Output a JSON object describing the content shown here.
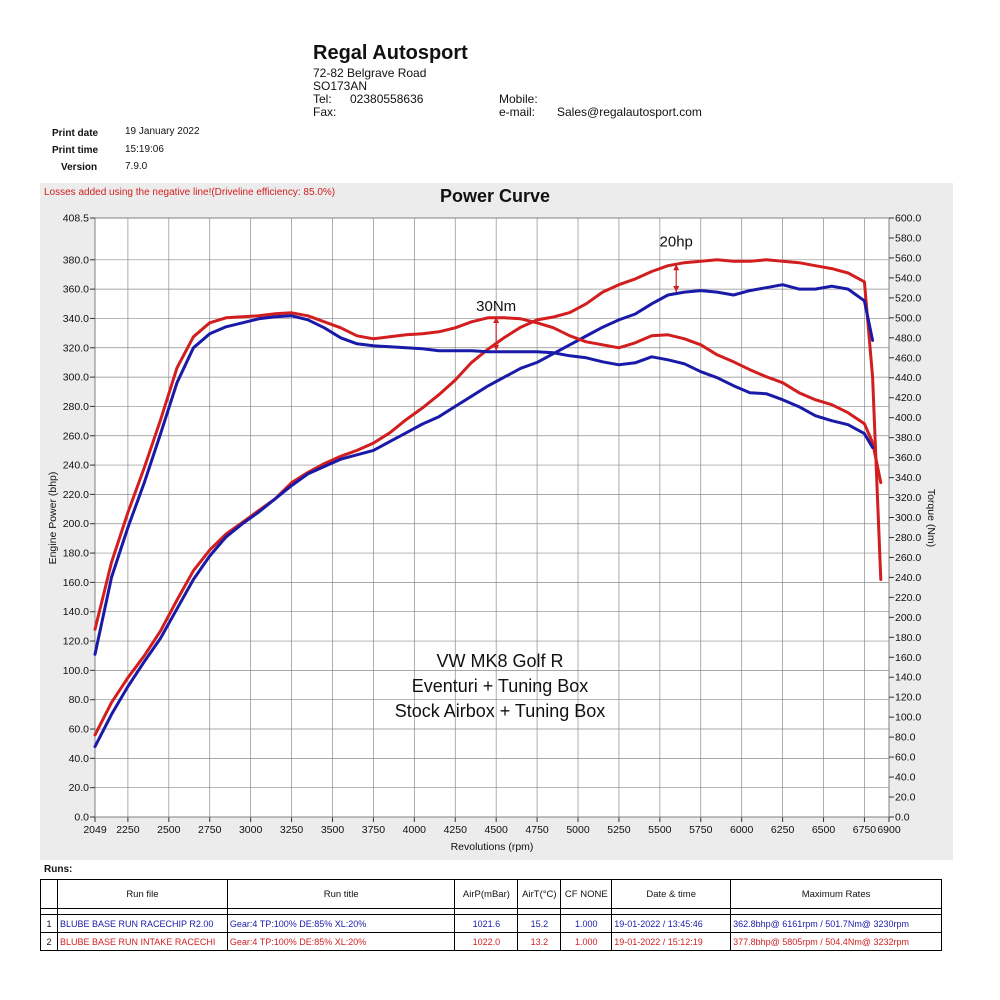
{
  "header": {
    "company": "Regal Autosport",
    "address1": "72-82 Belgrave Road",
    "address2": "SO173AN",
    "tel_label": "Tel:",
    "tel_value": "02380558636",
    "fax_label": "Fax:",
    "mobile_label": "Mobile:",
    "email_label": "e-mail:",
    "email_value": "Sales@regalautosport.com"
  },
  "meta": {
    "print_date_label": "Print date",
    "print_date_value": "19 January 2022",
    "print_time_label": "Print time",
    "print_time_value": "15:19:06",
    "version_label": "Version",
    "version_value": "7.9.0"
  },
  "colors": {
    "red": "#d21e1e",
    "blue": "#1a1aa8",
    "panel": "#ececec",
    "grid": "#8c8c8c"
  },
  "chart_data": {
    "type": "line",
    "title": "Power Curve",
    "note": "Losses added using the negative line!(Driveline efficiency: 85.0%)",
    "xlabel": "Revolutions (rpm)",
    "ylabel": "Engine Power (bhp)",
    "y2label": "Torque (Nm)",
    "xlim": [
      2049,
      6900
    ],
    "ylim": [
      0,
      408.5
    ],
    "y2lim": [
      0,
      600
    ],
    "x_ticks": [
      "2049",
      "2250",
      "2500",
      "2750",
      "3000",
      "3250",
      "3500",
      "3750",
      "4000",
      "4250",
      "4500",
      "4750",
      "5000",
      "5250",
      "5500",
      "5750",
      "6000",
      "6250",
      "6500",
      "6750",
      "6900"
    ],
    "x_tick_values": [
      2049,
      2250,
      2500,
      2750,
      3000,
      3250,
      3500,
      3750,
      4000,
      4250,
      4500,
      4750,
      5000,
      5250,
      5500,
      5750,
      6000,
      6250,
      6500,
      6750,
      6900
    ],
    "y_ticks": [
      "0.0",
      "20.0",
      "40.0",
      "60.0",
      "80.0",
      "100.0",
      "120.0",
      "140.0",
      "160.0",
      "180.0",
      "200.0",
      "220.0",
      "240.0",
      "260.0",
      "280.0",
      "300.0",
      "320.0",
      "340.0",
      "360.0",
      "380.0",
      "408.5"
    ],
    "y_tick_values": [
      0,
      20,
      40,
      60,
      80,
      100,
      120,
      140,
      160,
      180,
      200,
      220,
      240,
      260,
      280,
      300,
      320,
      340,
      360,
      380,
      408.5
    ],
    "y2_ticks": [
      "0.0",
      "20.0",
      "40.0",
      "60.0",
      "80.0",
      "100.0",
      "120.0",
      "140.0",
      "160.0",
      "180.0",
      "200.0",
      "220.0",
      "240.0",
      "260.0",
      "280.0",
      "300.0",
      "320.0",
      "340.0",
      "360.0",
      "380.0",
      "400.0",
      "420.0",
      "440.0",
      "460.0",
      "480.0",
      "500.0",
      "520.0",
      "540.0",
      "560.0",
      "580.0",
      "600.0"
    ],
    "y2_tick_values": [
      0,
      20,
      40,
      60,
      80,
      100,
      120,
      140,
      160,
      180,
      200,
      220,
      240,
      260,
      280,
      300,
      320,
      340,
      360,
      380,
      400,
      420,
      440,
      460,
      480,
      500,
      520,
      540,
      560,
      580,
      600
    ],
    "series": [
      {
        "axis": "left",
        "color": "#d21e1e",
        "x": [
          2049,
          2150,
          2250,
          2350,
          2450,
          2550,
          2650,
          2750,
          2850,
          2950,
          3050,
          3150,
          3250,
          3350,
          3450,
          3550,
          3650,
          3750,
          3850,
          3950,
          4050,
          4150,
          4250,
          4350,
          4450,
          4550,
          4650,
          4750,
          4850,
          4950,
          5050,
          5150,
          5250,
          5350,
          5450,
          5550,
          5650,
          5750,
          5850,
          5950,
          6050,
          6150,
          6250,
          6350,
          6450,
          6550,
          6650,
          6750,
          6800,
          6850
        ],
        "y": [
          56,
          78,
          95,
          110,
          127,
          148,
          168,
          182,
          193,
          201,
          209,
          217,
          228,
          235,
          241,
          246,
          250,
          255,
          262,
          271,
          279,
          288,
          298,
          310,
          319,
          327,
          334,
          339,
          341,
          344,
          350,
          358,
          363,
          367,
          372,
          376,
          378,
          379,
          380,
          379,
          379,
          380,
          379,
          378,
          376,
          374,
          371,
          365,
          300,
          162
        ]
      },
      {
        "axis": "left",
        "color": "#1a1aa8",
        "x": [
          2049,
          2150,
          2250,
          2350,
          2450,
          2550,
          2650,
          2750,
          2850,
          2950,
          3050,
          3150,
          3250,
          3350,
          3450,
          3550,
          3650,
          3750,
          3850,
          3950,
          4050,
          4150,
          4250,
          4350,
          4450,
          4550,
          4650,
          4750,
          4850,
          4950,
          5050,
          5150,
          5250,
          5350,
          5450,
          5550,
          5650,
          5750,
          5850,
          5950,
          6050,
          6150,
          6250,
          6350,
          6450,
          6550,
          6650,
          6750,
          6800
        ],
        "y": [
          48,
          70,
          89,
          106,
          122,
          142,
          162,
          178,
          191,
          200,
          208,
          217,
          226,
          234,
          239,
          244,
          247,
          250,
          256,
          262,
          268,
          273,
          280,
          287,
          294,
          300,
          306,
          310,
          316,
          322,
          328,
          334,
          339,
          343,
          350,
          356,
          358,
          359,
          358,
          356,
          359,
          361,
          363,
          360,
          360,
          362,
          360,
          352,
          325
        ]
      },
      {
        "axis": "right",
        "color": "#d21e1e",
        "x": [
          2049,
          2150,
          2250,
          2350,
          2450,
          2550,
          2650,
          2750,
          2850,
          2950,
          3050,
          3150,
          3250,
          3350,
          3450,
          3550,
          3650,
          3750,
          3850,
          3950,
          4050,
          4150,
          4250,
          4350,
          4450,
          4550,
          4650,
          4750,
          4850,
          4950,
          5050,
          5150,
          5250,
          5350,
          5450,
          5550,
          5650,
          5750,
          5850,
          5950,
          6050,
          6150,
          6250,
          6350,
          6450,
          6550,
          6650,
          6750,
          6800,
          6850
        ],
        "y": [
          188,
          255,
          305,
          350,
          398,
          450,
          481,
          495,
          500,
          501,
          502,
          504,
          505,
          502,
          496,
          490,
          482,
          479,
          481,
          483,
          484,
          486,
          490,
          496,
          500,
          500,
          499,
          495,
          490,
          482,
          476,
          473,
          470,
          475,
          482,
          483,
          479,
          473,
          463,
          456,
          448,
          441,
          435,
          425,
          418,
          413,
          405,
          394,
          375,
          335
        ]
      },
      {
        "axis": "right",
        "color": "#1a1aa8",
        "x": [
          2049,
          2150,
          2250,
          2350,
          2450,
          2550,
          2650,
          2750,
          2850,
          2950,
          3050,
          3150,
          3250,
          3350,
          3450,
          3550,
          3650,
          3750,
          3850,
          3950,
          4050,
          4150,
          4250,
          4350,
          4450,
          4550,
          4650,
          4750,
          4850,
          4950,
          5050,
          5150,
          5250,
          5350,
          5450,
          5550,
          5650,
          5750,
          5850,
          5950,
          6050,
          6150,
          6250,
          6350,
          6450,
          6550,
          6650,
          6750,
          6800
        ],
        "y": [
          163,
          240,
          290,
          335,
          384,
          435,
          470,
          484,
          491,
          495,
          499,
          501,
          502,
          498,
          490,
          480,
          474,
          472,
          471,
          470,
          469,
          467,
          467,
          467,
          466,
          466,
          466,
          466,
          465,
          462,
          460,
          456,
          453,
          455,
          461,
          458,
          454,
          446,
          440,
          432,
          425,
          424,
          418,
          411,
          402,
          397,
          393,
          384,
          370
        ]
      }
    ],
    "annotations": [
      {
        "text": "30Nm",
        "x": 4500,
        "y": 345,
        "arrow_from": 341,
        "arrow_to": 318
      },
      {
        "text": "20hp",
        "x": 5600,
        "y": 389,
        "arrow_from": 377,
        "arrow_to": 358
      }
    ],
    "legend_text": [
      "VW MK8 Golf R",
      "Eventuri + Tuning Box",
      "Stock Airbox + Tuning Box"
    ]
  },
  "runs": {
    "label": "Runs:",
    "headers": [
      "",
      "Run file",
      "Run title",
      "AirP(mBar)",
      "AirT(°C)",
      "CF NONE",
      "Date & time",
      "Maximum Rates"
    ],
    "rows": [
      {
        "num": "1",
        "file": "BLUBE BASE RUN RACECHIP R2.00",
        "title": "Gear:4 TP:100% DE:85% XL:20%",
        "airp": "1021.6",
        "airt": "15.2",
        "cf": "1.000",
        "datetime": "19-01-2022 / 13:45:46",
        "max": "362.8bhp@ 6161rpm / 501.7Nm@ 3230rpm"
      },
      {
        "num": "2",
        "file": "BLUBE BASE RUN INTAKE RACECHI",
        "title": "Gear:4 TP:100% DE:85% XL:20%",
        "airp": "1022.0",
        "airt": "13.2",
        "cf": "1.000",
        "datetime": "19-01-2022 / 15:12:19",
        "max": "377.8bhp@ 5805rpm / 504.4Nm@ 3232rpm"
      }
    ]
  }
}
